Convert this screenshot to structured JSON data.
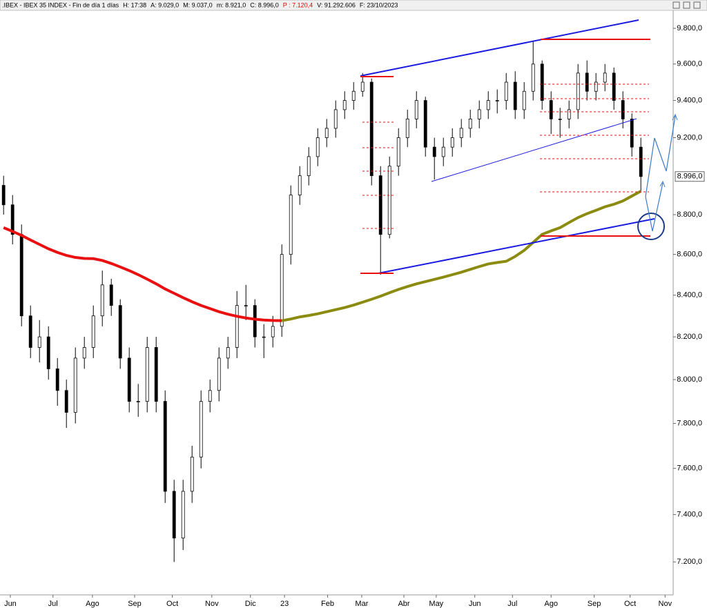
{
  "chart_data": {
    "type": "candlestick",
    "title": ".IBEX - IBEX 35 INDEX - Fin de día 1 días",
    "stats": [
      {
        "text": "H: 17:38",
        "color": "#000000"
      },
      {
        "text": "A: 9.029,0",
        "color": "#000000"
      },
      {
        "text": "M: 9.037,0",
        "color": "#000000"
      },
      {
        "text": "m: 8.921,0",
        "color": "#000000"
      },
      {
        "text": "C: 8.996,0",
        "color": "#000000"
      },
      {
        "text": "P : 7.120,4",
        "color": "#e00000"
      },
      {
        "text": "V: 91.292.606",
        "color": "#000000"
      },
      {
        "text": "F: 23/10/2023",
        "color": "#000000"
      }
    ],
    "log_scale": true,
    "up_color": "#ffffff",
    "down_color": "#000000",
    "x": [
      0,
      1,
      2,
      3,
      4,
      5,
      6,
      7,
      8,
      9,
      10,
      11,
      12,
      13,
      14,
      15,
      16,
      17,
      18,
      19,
      20,
      21,
      22,
      23,
      24,
      25,
      26,
      27,
      28,
      29,
      30,
      31,
      32,
      33,
      34,
      35,
      36,
      37,
      38,
      39,
      40,
      41,
      42,
      43,
      44,
      45,
      46,
      47,
      48,
      49,
      50,
      51,
      52,
      53,
      54,
      55,
      56,
      57,
      58,
      59,
      60,
      61,
      62,
      63,
      64,
      65,
      66,
      67,
      68,
      69,
      70,
      71
    ],
    "open": [
      8950,
      8850,
      8700,
      8300,
      8150,
      8200,
      8050,
      7950,
      7850,
      8100,
      8150,
      8300,
      8450,
      8350,
      8100,
      7900,
      7900,
      8150,
      7900,
      7500,
      7300,
      7500,
      7650,
      7900,
      7950,
      8100,
      8150,
      8350,
      8350,
      8200,
      8200,
      8250,
      8600,
      8900,
      9000,
      9100,
      9200,
      9250,
      9350,
      9400,
      9450,
      9500,
      9000,
      8700,
      9050,
      9200,
      9300,
      9400,
      9150,
      9100,
      9150,
      9200,
      9250,
      9300,
      9350,
      9400,
      9400,
      9500,
      9350,
      9450,
      9600,
      9400,
      9300,
      9300,
      9350,
      9550,
      9450,
      9500,
      9550,
      9400,
      9300,
      9150
    ],
    "high": [
      9000,
      8900,
      8750,
      8350,
      8280,
      8250,
      8100,
      8000,
      8150,
      8200,
      8350,
      8520,
      8480,
      8380,
      8150,
      7980,
      8200,
      8200,
      7950,
      7550,
      7550,
      7700,
      7950,
      8000,
      8150,
      8200,
      8420,
      8450,
      8380,
      8260,
      8300,
      8650,
      8950,
      9050,
      9150,
      9250,
      9300,
      9400,
      9450,
      9500,
      9550,
      9520,
      9050,
      9100,
      9250,
      9350,
      9450,
      9420,
      9200,
      9200,
      9250,
      9300,
      9350,
      9400,
      9450,
      9460,
      9550,
      9560,
      9500,
      9730,
      9620,
      9450,
      9360,
      9400,
      9600,
      9620,
      9550,
      9600,
      9580,
      9450,
      9330,
      9200
    ],
    "low": [
      8800,
      8650,
      8250,
      8100,
      8080,
      8000,
      7880,
      7780,
      7800,
      8050,
      8100,
      8250,
      8300,
      8050,
      7850,
      7830,
      7850,
      7850,
      7450,
      7200,
      7250,
      7450,
      7600,
      7850,
      7900,
      8050,
      8100,
      8280,
      8150,
      8100,
      8150,
      8200,
      8550,
      8850,
      8950,
      9050,
      9150,
      9200,
      9300,
      9350,
      9420,
      8950,
      8500,
      8680,
      9000,
      9150,
      9250,
      9100,
      8980,
      9050,
      9100,
      9150,
      9200,
      9250,
      9300,
      9330,
      9350,
      9300,
      9300,
      9400,
      9350,
      9220,
      9200,
      9250,
      9300,
      9400,
      9400,
      9450,
      9350,
      9250,
      9100,
      8921
    ],
    "close": [
      8850,
      8700,
      8300,
      8150,
      8200,
      8050,
      7950,
      7850,
      8100,
      8150,
      8300,
      8450,
      8350,
      8100,
      7900,
      7900,
      8150,
      7900,
      7500,
      7300,
      7500,
      7650,
      7900,
      7950,
      8100,
      8150,
      8350,
      8350,
      8200,
      8200,
      8250,
      8600,
      8900,
      9000,
      9100,
      9200,
      9250,
      9350,
      9400,
      9450,
      9500,
      9000,
      8700,
      9050,
      9200,
      9300,
      9400,
      9150,
      9100,
      9150,
      9200,
      9250,
      9300,
      9350,
      9400,
      9400,
      9500,
      9350,
      9450,
      9600,
      9400,
      9300,
      9300,
      9350,
      9550,
      9450,
      9500,
      9550,
      9400,
      9300,
      9150,
      8996
    ],
    "series": [
      {
        "color": "#e81010",
        "values": [
          8734,
          8715,
          8695,
          8672,
          8650,
          8628,
          8610,
          8595,
          8585,
          8580,
          8579,
          8570,
          8555,
          8538,
          8520,
          8500,
          8478,
          8455,
          8430,
          8409,
          8388,
          8368,
          8350,
          8335,
          8320,
          8308,
          8298,
          8290,
          8284,
          8280,
          8278,
          8277,
          null,
          null,
          null,
          null,
          null,
          null,
          null,
          null,
          null,
          null,
          null,
          null,
          null,
          null,
          null,
          null,
          null,
          null,
          null,
          null,
          null,
          null,
          null,
          null,
          null,
          null,
          null,
          null,
          null,
          null,
          null,
          null,
          null,
          null,
          null,
          null,
          null,
          null,
          null,
          null
        ]
      },
      {
        "color": "#8b8b10",
        "values": [
          null,
          null,
          null,
          null,
          null,
          null,
          null,
          null,
          null,
          null,
          null,
          null,
          null,
          null,
          null,
          null,
          null,
          null,
          null,
          null,
          null,
          null,
          null,
          null,
          null,
          null,
          null,
          null,
          null,
          null,
          null,
          8277,
          8285,
          8295,
          8302,
          8310,
          8320,
          8330,
          8340,
          8352,
          8366,
          8380,
          8395,
          8412,
          8428,
          8442,
          8455,
          8466,
          8477,
          8488,
          8500,
          8512,
          8526,
          8540,
          8553,
          8560,
          8566,
          8590,
          8620,
          8660,
          8700,
          8718,
          8734,
          8760,
          8785,
          8805,
          8822,
          8840,
          8853,
          8870,
          8895,
          8920
        ]
      }
    ],
    "last_price": {
      "value": 8996,
      "label": "8.996,0"
    },
    "xlim": [
      -0.4,
      74.6
    ],
    "xticks": [
      {
        "value": 0.75,
        "label": "Jun"
      },
      {
        "value": 5.5,
        "label": "Jul"
      },
      {
        "value": 9.9,
        "label": "Ago"
      },
      {
        "value": 14.6,
        "label": "Sep"
      },
      {
        "value": 18.8,
        "label": "Oct"
      },
      {
        "value": 23.2,
        "label": "Nov"
      },
      {
        "value": 27.5,
        "label": "Dic"
      },
      {
        "value": 31.3,
        "label": "23"
      },
      {
        "value": 36.1,
        "label": "Feb"
      },
      {
        "value": 39.9,
        "label": "Mar"
      },
      {
        "value": 44.6,
        "label": "Abr"
      },
      {
        "value": 48.2,
        "label": "May"
      },
      {
        "value": 52.5,
        "label": "Jun"
      },
      {
        "value": 56.7,
        "label": "Jul"
      },
      {
        "value": 61,
        "label": "Ago"
      },
      {
        "value": 65.8,
        "label": "Sep"
      },
      {
        "value": 69.8,
        "label": "Oct"
      },
      {
        "value": 73.7,
        "label": "Nov"
      }
    ],
    "ylim": [
      7070,
      9930
    ],
    "yticks": [
      {
        "value": 7200,
        "label": "7.200,0"
      },
      {
        "value": 7400,
        "label": "7.400,0"
      },
      {
        "value": 7600,
        "label": "7.600,0"
      },
      {
        "value": 7800,
        "label": "7.800,0"
      },
      {
        "value": 8000,
        "label": "8.000,0"
      },
      {
        "value": 8200,
        "label": "8.200,0"
      },
      {
        "value": 8400,
        "label": "8.400,0"
      },
      {
        "value": 8600,
        "label": "8.600,0"
      },
      {
        "value": 8800,
        "label": "8.800,0"
      },
      {
        "value": 9200,
        "label": "9.200,0"
      },
      {
        "value": 9400,
        "label": "9.400,0"
      },
      {
        "value": 9600,
        "label": "9.600,0"
      },
      {
        "value": 9800,
        "label": "9.800,0"
      }
    ]
  }
}
